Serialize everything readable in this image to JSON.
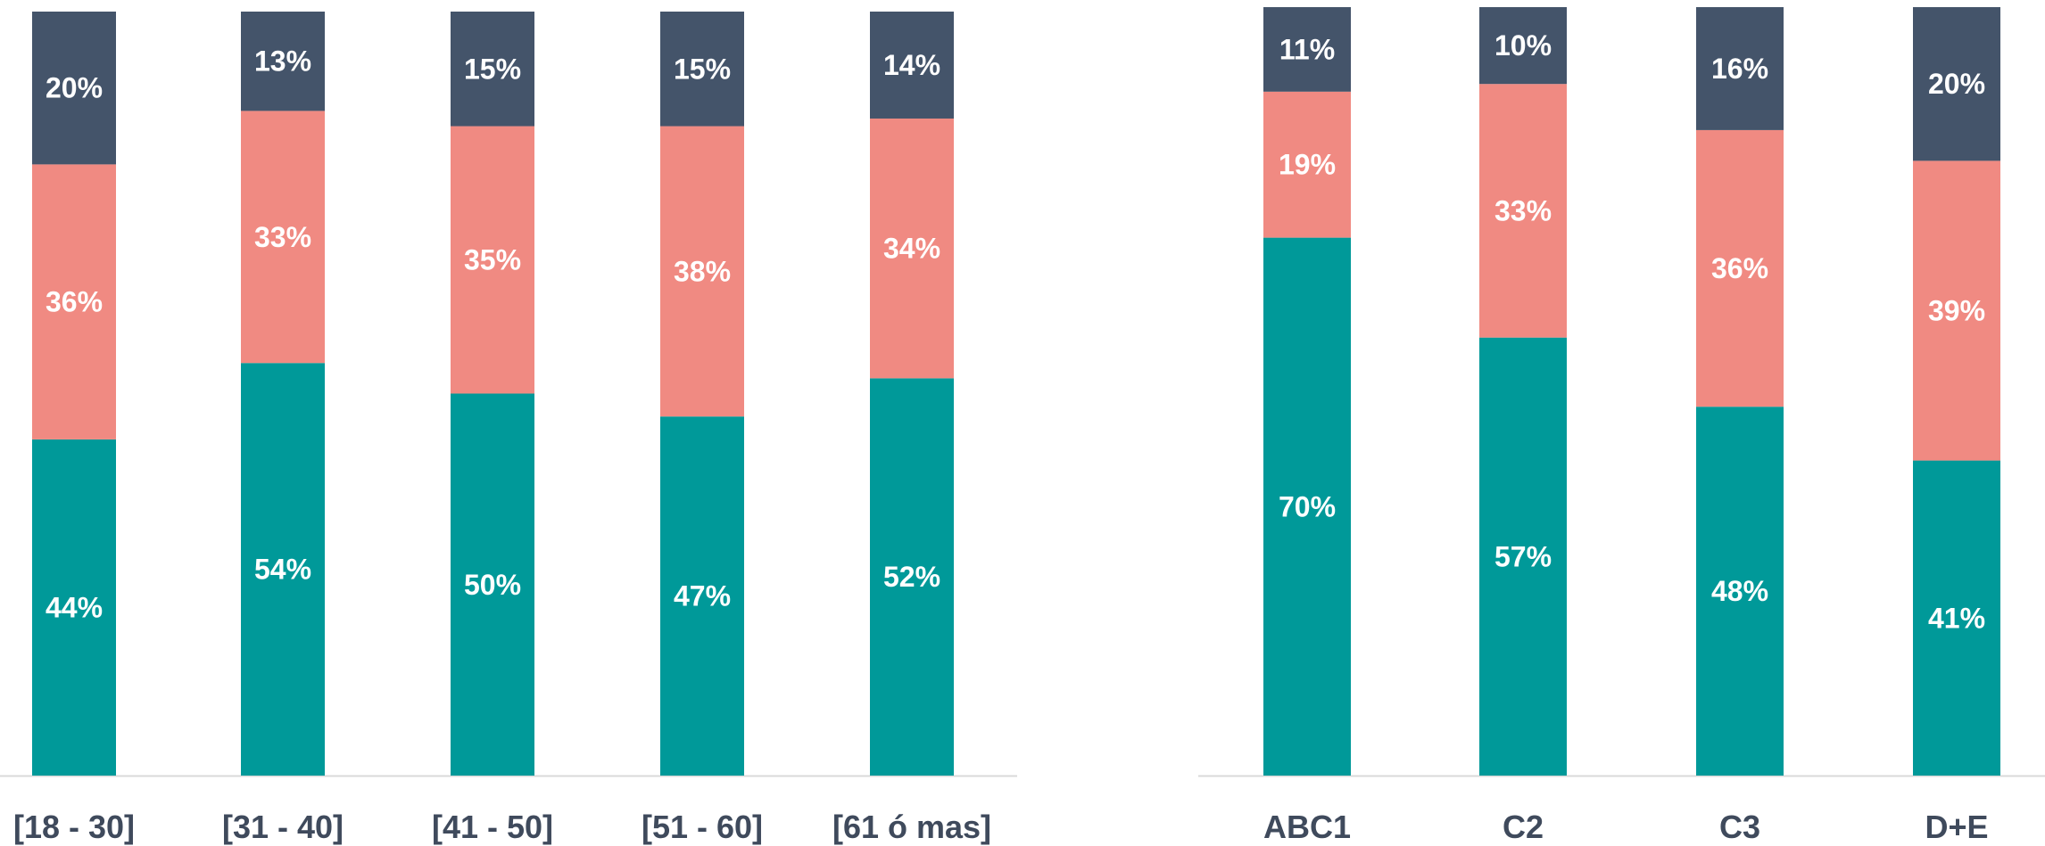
{
  "chart_data": [
    {
      "type": "bar",
      "stacked": true,
      "categories": [
        "[18 - 30]",
        "[31 - 40]",
        "[41 - 50]",
        "[51 - 60]",
        "[61 ó mas]"
      ],
      "series": [
        {
          "values": [
            44,
            54,
            50,
            47,
            52
          ],
          "color": "#009999"
        },
        {
          "values": [
            36,
            33,
            35,
            38,
            34
          ],
          "color": "#f08a82"
        },
        {
          "values": [
            20,
            13,
            15,
            15,
            14
          ],
          "color": "#44546a"
        }
      ],
      "data_labels": [
        [
          "44%",
          "54%",
          "50%",
          "47%",
          "52%"
        ],
        [
          "36%",
          "33%",
          "35%",
          "38%",
          "34%"
        ],
        [
          "20%",
          "13%",
          "15%",
          "15%",
          "14%"
        ]
      ],
      "ylim": [
        0,
        100
      ],
      "grid": false,
      "legend": "none"
    },
    {
      "type": "bar",
      "stacked": true,
      "categories": [
        "ABC1",
        "C2",
        "C3",
        "D+E"
      ],
      "series": [
        {
          "values": [
            70,
            57,
            48,
            41
          ],
          "color": "#009999"
        },
        {
          "values": [
            19,
            33,
            36,
            39
          ],
          "color": "#f08a82"
        },
        {
          "values": [
            11,
            10,
            16,
            20
          ],
          "color": "#44546a"
        }
      ],
      "data_labels": [
        [
          "70%",
          "57%",
          "48%",
          "41%"
        ],
        [
          "19%",
          "33%",
          "36%",
          "39%"
        ],
        [
          "11%",
          "10%",
          "16%",
          "20%"
        ]
      ],
      "ylim": [
        0,
        100
      ],
      "grid": false,
      "legend": "none"
    }
  ],
  "colors": {
    "axis": "#d9d9d9",
    "category_text": "#3f4a5c",
    "segment_text": "#ffffff"
  }
}
